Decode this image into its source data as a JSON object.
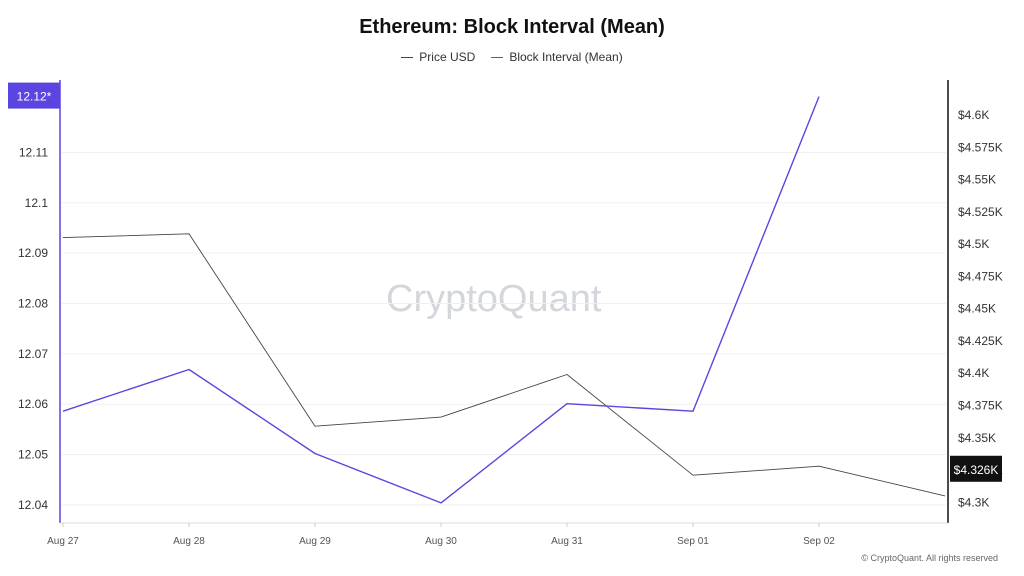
{
  "title": "Ethereum: Block Interval (Mean)",
  "copyright": "© CryptoQuant. All rights reserved",
  "watermark": "CryptoQuant",
  "chart_data": {
    "type": "line",
    "title": "Ethereum: Block Interval (Mean)",
    "categories": [
      "Aug 27",
      "Aug 28",
      "Aug 29",
      "Aug 30",
      "Aug 31",
      "Sep 01",
      "Sep 02",
      ""
    ],
    "legend": {
      "placement": "top-center"
    },
    "grid": true,
    "series": [
      {
        "name": "Price USD",
        "axis": "right",
        "color": "#444444",
        "values": [
          4505,
          4508,
          4359,
          4366,
          4399,
          4321,
          4328,
          4305
        ]
      },
      {
        "name": "Block Interval (Mean)",
        "axis": "left",
        "color": "#5b45e0",
        "values": [
          12.0586,
          12.0669,
          12.0502,
          12.0404,
          12.0601,
          12.0586,
          12.1211,
          null
        ]
      }
    ],
    "left_axis": {
      "ticks": [
        12.04,
        12.05,
        12.06,
        12.07,
        12.08,
        12.09,
        12.1,
        12.11
      ],
      "tick_labels": [
        "12.04",
        "12.05",
        "12.06",
        "12.07",
        "12.08",
        "12.09",
        "12.1",
        "12.11"
      ],
      "range": [
        12.0364,
        12.1236
      ],
      "badge": "12.12*",
      "badge_value": 12.1211,
      "badge_color": "#5b45e0"
    },
    "right_axis": {
      "ticks": [
        4300,
        4325,
        4350,
        4375,
        4400,
        4425,
        4450,
        4475,
        4500,
        4525,
        4550,
        4575,
        4600
      ],
      "tick_labels": [
        "$4.3K",
        "$4.325K",
        "$4.35K",
        "$4.375K",
        "$4.4K",
        "$4.425K",
        "$4.45K",
        "$4.475K",
        "$4.5K",
        "$4.525K",
        "$4.55K",
        "$4.575K",
        "$4.6K"
      ],
      "range": [
        4284,
        4624
      ],
      "badge": "$4.326K",
      "badge_value": 4326,
      "badge_color": "#111111"
    }
  }
}
